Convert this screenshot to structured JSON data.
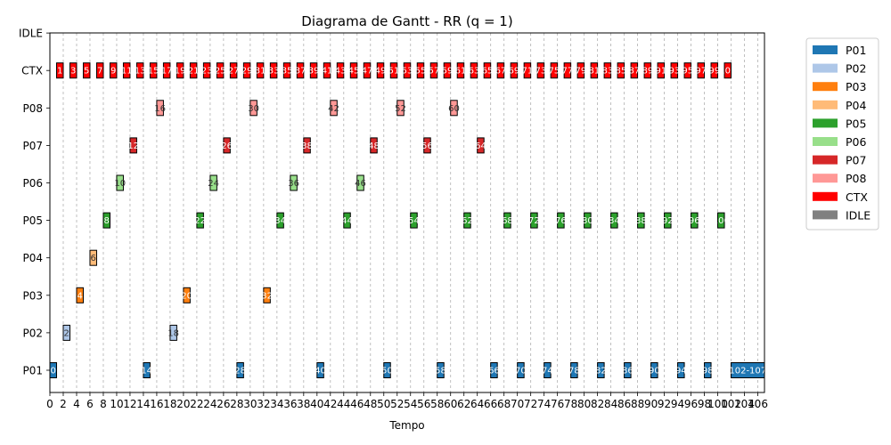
{
  "chart_data": {
    "type": "gantt",
    "title": "Diagrama de Gantt - RR (q = 1)",
    "xlabel": "Tempo",
    "ylabel": "",
    "xlim": [
      0,
      107
    ],
    "x_ticks": [
      0,
      2,
      4,
      6,
      8,
      10,
      12,
      14,
      16,
      18,
      20,
      22,
      24,
      26,
      28,
      30,
      32,
      34,
      36,
      38,
      40,
      42,
      44,
      46,
      48,
      50,
      52,
      54,
      56,
      58,
      60,
      62,
      64,
      66,
      68,
      70,
      72,
      74,
      76,
      78,
      80,
      82,
      84,
      86,
      88,
      90,
      92,
      94,
      96,
      98,
      100,
      102,
      104,
      106
    ],
    "rows": [
      "P01",
      "P02",
      "P03",
      "P04",
      "P05",
      "P06",
      "P07",
      "P08",
      "CTX",
      "IDLE"
    ],
    "grid": "vertical-dashed",
    "legend_position": "outside-right",
    "legend": [
      {
        "name": "P01",
        "color": "#1f77b4"
      },
      {
        "name": "P02",
        "color": "#aec7e8"
      },
      {
        "name": "P03",
        "color": "#ff7f0e"
      },
      {
        "name": "P04",
        "color": "#ffbb78"
      },
      {
        "name": "P05",
        "color": "#2ca02c"
      },
      {
        "name": "P06",
        "color": "#98df8a"
      },
      {
        "name": "P07",
        "color": "#d62728"
      },
      {
        "name": "P08",
        "color": "#ff9896"
      },
      {
        "name": "CTX",
        "color": "#ff0000"
      },
      {
        "name": "IDLE",
        "color": "#808080"
      }
    ],
    "run_segments": [
      {
        "row": "P01",
        "start": 0,
        "end": 1
      },
      {
        "row": "P02",
        "start": 2,
        "end": 3
      },
      {
        "row": "P03",
        "start": 4,
        "end": 5
      },
      {
        "row": "P04",
        "start": 6,
        "end": 7
      },
      {
        "row": "P05",
        "start": 8,
        "end": 9
      },
      {
        "row": "P06",
        "start": 10,
        "end": 11
      },
      {
        "row": "P07",
        "start": 12,
        "end": 13
      },
      {
        "row": "P01",
        "start": 14,
        "end": 15
      },
      {
        "row": "P08",
        "start": 16,
        "end": 17
      },
      {
        "row": "P02",
        "start": 18,
        "end": 19
      },
      {
        "row": "P03",
        "start": 20,
        "end": 21
      },
      {
        "row": "P05",
        "start": 22,
        "end": 23
      },
      {
        "row": "P06",
        "start": 24,
        "end": 25
      },
      {
        "row": "P07",
        "start": 26,
        "end": 27
      },
      {
        "row": "P01",
        "start": 28,
        "end": 29
      },
      {
        "row": "P08",
        "start": 30,
        "end": 31
      },
      {
        "row": "P03",
        "start": 32,
        "end": 33
      },
      {
        "row": "P05",
        "start": 34,
        "end": 35
      },
      {
        "row": "P06",
        "start": 36,
        "end": 37
      },
      {
        "row": "P07",
        "start": 38,
        "end": 39
      },
      {
        "row": "P01",
        "start": 40,
        "end": 41
      },
      {
        "row": "P08",
        "start": 42,
        "end": 43
      },
      {
        "row": "P05",
        "start": 44,
        "end": 45
      },
      {
        "row": "P06",
        "start": 46,
        "end": 47
      },
      {
        "row": "P07",
        "start": 48,
        "end": 49
      },
      {
        "row": "P01",
        "start": 50,
        "end": 51
      },
      {
        "row": "P08",
        "start": 52,
        "end": 53
      },
      {
        "row": "P05",
        "start": 54,
        "end": 55
      },
      {
        "row": "P07",
        "start": 56,
        "end": 57
      },
      {
        "row": "P01",
        "start": 58,
        "end": 59
      },
      {
        "row": "P08",
        "start": 60,
        "end": 61
      },
      {
        "row": "P05",
        "start": 62,
        "end": 63
      },
      {
        "row": "P07",
        "start": 64,
        "end": 65
      },
      {
        "row": "P01",
        "start": 66,
        "end": 67
      },
      {
        "row": "P05",
        "start": 68,
        "end": 69
      },
      {
        "row": "P01",
        "start": 70,
        "end": 71
      },
      {
        "row": "P05",
        "start": 72,
        "end": 73
      },
      {
        "row": "P01",
        "start": 74,
        "end": 75
      },
      {
        "row": "P05",
        "start": 76,
        "end": 77
      },
      {
        "row": "P01",
        "start": 78,
        "end": 79
      },
      {
        "row": "P05",
        "start": 80,
        "end": 81
      },
      {
        "row": "P01",
        "start": 82,
        "end": 83
      },
      {
        "row": "P05",
        "start": 84,
        "end": 85
      },
      {
        "row": "P01",
        "start": 86,
        "end": 87
      },
      {
        "row": "P05",
        "start": 88,
        "end": 89
      },
      {
        "row": "P01",
        "start": 90,
        "end": 91
      },
      {
        "row": "P05",
        "start": 92,
        "end": 93
      },
      {
        "row": "P01",
        "start": 94,
        "end": 95
      },
      {
        "row": "P05",
        "start": 96,
        "end": 97
      },
      {
        "row": "P01",
        "start": 98,
        "end": 99
      },
      {
        "row": "P05",
        "start": 100,
        "end": 101
      },
      {
        "row": "P01",
        "start": 102,
        "end": 107,
        "label": "102-107"
      }
    ],
    "ctx_segments": [
      {
        "start": 1,
        "end": 2
      },
      {
        "start": 3,
        "end": 4
      },
      {
        "start": 5,
        "end": 6
      },
      {
        "start": 7,
        "end": 8
      },
      {
        "start": 9,
        "end": 10
      },
      {
        "start": 11,
        "end": 12
      },
      {
        "start": 13,
        "end": 14
      },
      {
        "start": 15,
        "end": 16
      },
      {
        "start": 17,
        "end": 18
      },
      {
        "start": 19,
        "end": 20
      },
      {
        "start": 21,
        "end": 22
      },
      {
        "start": 23,
        "end": 24
      },
      {
        "start": 25,
        "end": 26
      },
      {
        "start": 27,
        "end": 28
      },
      {
        "start": 29,
        "end": 30
      },
      {
        "start": 31,
        "end": 32
      },
      {
        "start": 33,
        "end": 34
      },
      {
        "start": 35,
        "end": 36
      },
      {
        "start": 37,
        "end": 38
      },
      {
        "start": 39,
        "end": 40
      },
      {
        "start": 41,
        "end": 42
      },
      {
        "start": 43,
        "end": 44
      },
      {
        "start": 45,
        "end": 46
      },
      {
        "start": 47,
        "end": 48
      },
      {
        "start": 49,
        "end": 50
      },
      {
        "start": 51,
        "end": 52
      },
      {
        "start": 53,
        "end": 54
      },
      {
        "start": 55,
        "end": 56
      },
      {
        "start": 57,
        "end": 58
      },
      {
        "start": 59,
        "end": 60
      },
      {
        "start": 61,
        "end": 62
      },
      {
        "start": 63,
        "end": 64
      },
      {
        "start": 65,
        "end": 66
      },
      {
        "start": 67,
        "end": 68
      },
      {
        "start": 69,
        "end": 70
      },
      {
        "start": 71,
        "end": 72
      },
      {
        "start": 73,
        "end": 74
      },
      {
        "start": 75,
        "end": 76
      },
      {
        "start": 77,
        "end": 78
      },
      {
        "start": 79,
        "end": 80
      },
      {
        "start": 81,
        "end": 82
      },
      {
        "start": 83,
        "end": 84
      },
      {
        "start": 85,
        "end": 86
      },
      {
        "start": 87,
        "end": 88
      },
      {
        "start": 89,
        "end": 90
      },
      {
        "start": 91,
        "end": 92
      },
      {
        "start": 93,
        "end": 94
      },
      {
        "start": 95,
        "end": 96
      },
      {
        "start": 97,
        "end": 98
      },
      {
        "start": 99,
        "end": 100
      },
      {
        "start": 101,
        "end": 102
      }
    ]
  }
}
